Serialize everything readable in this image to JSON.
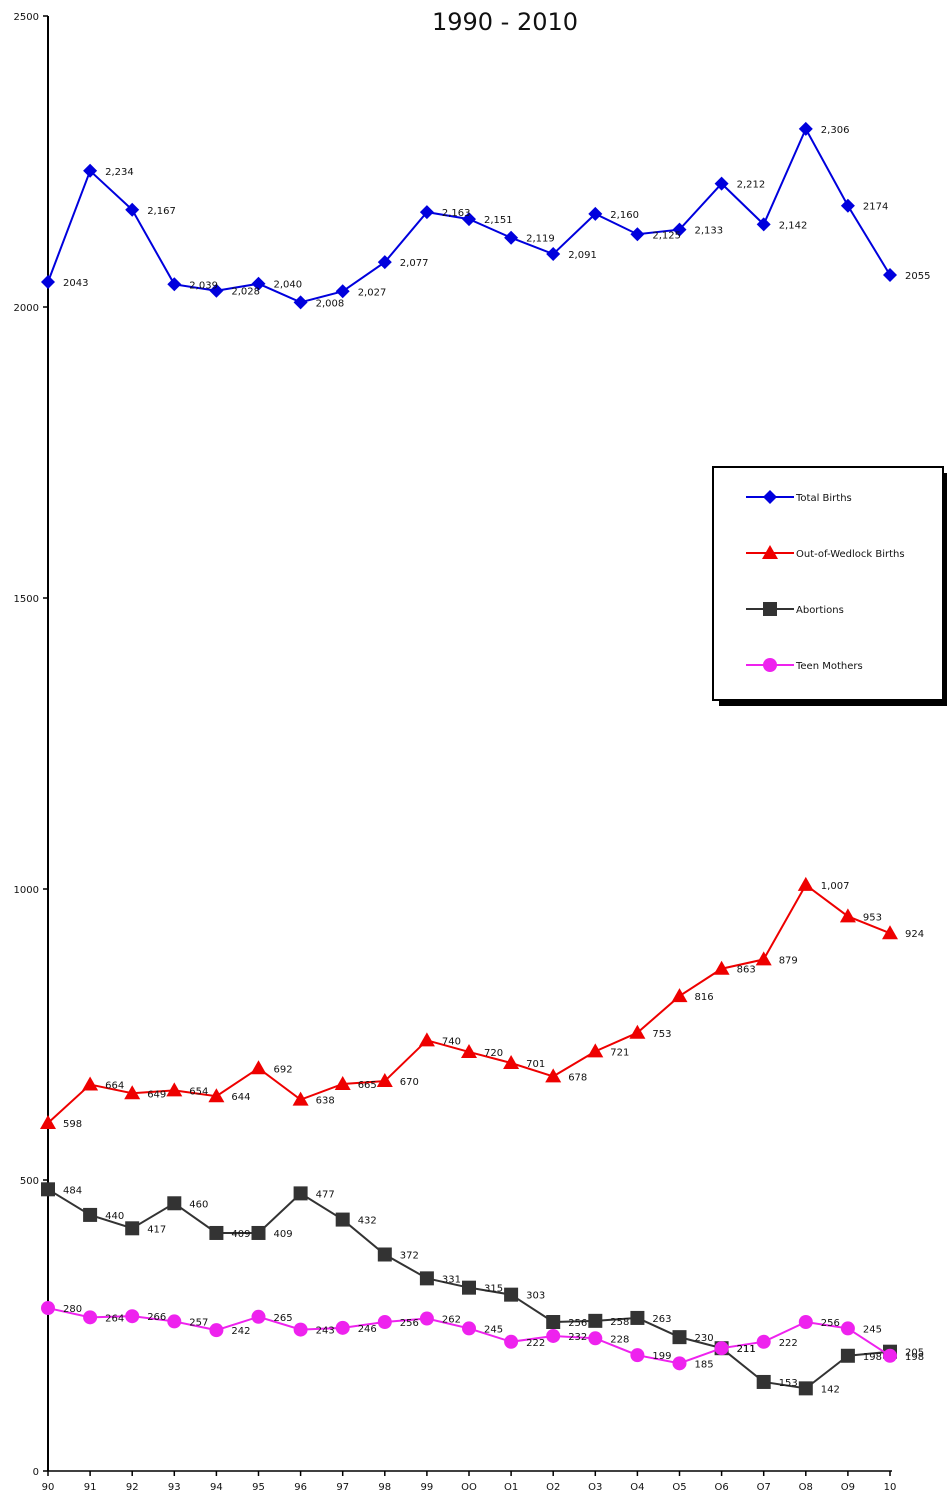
{
  "chart_data": {
    "type": "line",
    "title": "1990 - 2010",
    "xlabel": "",
    "ylabel": "",
    "ylim": [
      0,
      2500
    ],
    "yticks": [
      0,
      500,
      1000,
      1500,
      2000,
      2500
    ],
    "categories": [
      "90",
      "91",
      "92",
      "93",
      "94",
      "95",
      "96",
      "97",
      "98",
      "99",
      "OO",
      "O1",
      "O2",
      "O3",
      "O4",
      "O5",
      "O6",
      "O7",
      "O8",
      "O9",
      "10"
    ],
    "grid": false,
    "legend_position": "right",
    "series": [
      {
        "name": "Total Births",
        "color": "#0000dd",
        "marker": "diamond",
        "values": [
          2043,
          2234,
          2167,
          2039,
          2028,
          2040,
          2008,
          2027,
          2077,
          2163,
          2151,
          2119,
          2091,
          2160,
          2125,
          2133,
          2212,
          2142,
          2306,
          2174,
          2055
        ],
        "labels": [
          "2043",
          "2,234",
          "2,167",
          "2,039",
          "2,028",
          "2,040",
          "2,008",
          "2,027",
          "2,077",
          "2,163",
          "2,151",
          "2,119",
          "2,091",
          "2,160",
          "2,125",
          "2,133",
          "2,212",
          "2,142",
          "2,306",
          "2174",
          "2055"
        ]
      },
      {
        "name": "Out-of-Wedlock Births",
        "color": "#ee0000",
        "marker": "triangle",
        "values": [
          598,
          664,
          649,
          654,
          644,
          692,
          638,
          665,
          670,
          740,
          720,
          701,
          678,
          721,
          753,
          816,
          863,
          879,
          1007,
          953,
          924
        ],
        "labels": [
          "598",
          "664",
          "649",
          "654",
          "644",
          "692",
          "638",
          "665",
          "670",
          "740",
          "720",
          "701",
          "678",
          "721",
          "753",
          "816",
          "863",
          "879",
          "1,007",
          "953",
          "924"
        ]
      },
      {
        "name": "Abortions",
        "color": "#333333",
        "marker": "square",
        "values": [
          484,
          440,
          417,
          460,
          409,
          409,
          477,
          432,
          372,
          331,
          315,
          303,
          256,
          258,
          263,
          230,
          211,
          153,
          142,
          198,
          205
        ],
        "labels": [
          "484",
          "440",
          "417",
          "460",
          "409",
          "409",
          "477",
          "432",
          "372",
          "331",
          "315",
          "303",
          "256",
          "258",
          "263",
          "230",
          "211",
          "153",
          "142",
          "198",
          "205"
        ]
      },
      {
        "name": "Teen Mothers",
        "color": "#ee22ee",
        "marker": "circle",
        "values": [
          280,
          264,
          266,
          257,
          242,
          265,
          243,
          246,
          256,
          262,
          245,
          222,
          232,
          228,
          199,
          185,
          211,
          222,
          256,
          245,
          198
        ],
        "labels": [
          "280",
          "264",
          "266",
          "257",
          "242",
          "265",
          "243",
          "246",
          "256",
          "262",
          "245",
          "222",
          "232",
          "228",
          "199",
          "185",
          "211",
          "222",
          "256",
          "245",
          "198"
        ]
      }
    ]
  }
}
